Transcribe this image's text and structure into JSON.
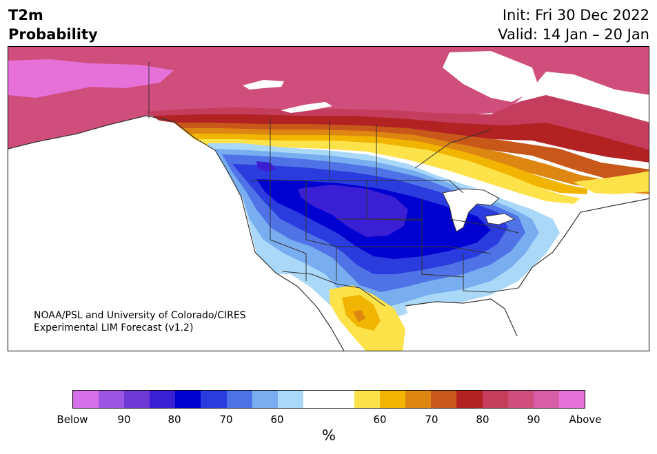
{
  "title": {
    "left_lines": [
      "T2m",
      "Probability"
    ],
    "right_lines": [
      "Init: Fri 30 Dec 2022",
      "Valid: 14 Jan – 20 Jan"
    ]
  },
  "credit": {
    "line1": "NOAA/PSL and University of Colorado/CIRES",
    "line2": "Experimental LIM Forecast (v1.2)"
  },
  "colorbar": {
    "unit": "%",
    "tick_labels": [
      "Below",
      "90",
      "80",
      "70",
      "60",
      "60",
      "70",
      "80",
      "90",
      "Above"
    ],
    "colors": [
      "#d570e8",
      "#9c55e2",
      "#6e3ad6",
      "#3a1fd4",
      "#0000d0",
      "#2a3cde",
      "#4f73e6",
      "#78aef0",
      "#aad8f8",
      "#ffffff",
      "#ffffff",
      "#fde24a",
      "#f1b400",
      "#de8612",
      "#c8571a",
      "#b32222",
      "#c43d5c",
      "#d04e7c",
      "#d95ea8",
      "#e671d9"
    ]
  },
  "map_colors": {
    "below_60": "#aad8f8",
    "below_65": "#78aef0",
    "below_70": "#4f73e6",
    "below_75": "#2a3cde",
    "below_80": "#0000d0",
    "below_85": "#3a1fd4",
    "above_60": "#fde24a",
    "above_65": "#f1b400",
    "above_70": "#de8612",
    "above_75": "#c8571a",
    "above_80": "#b32222",
    "above_85": "#c43d5c",
    "above_90": "#d04e7c",
    "above_95": "#e671d9",
    "border": "#333333"
  }
}
